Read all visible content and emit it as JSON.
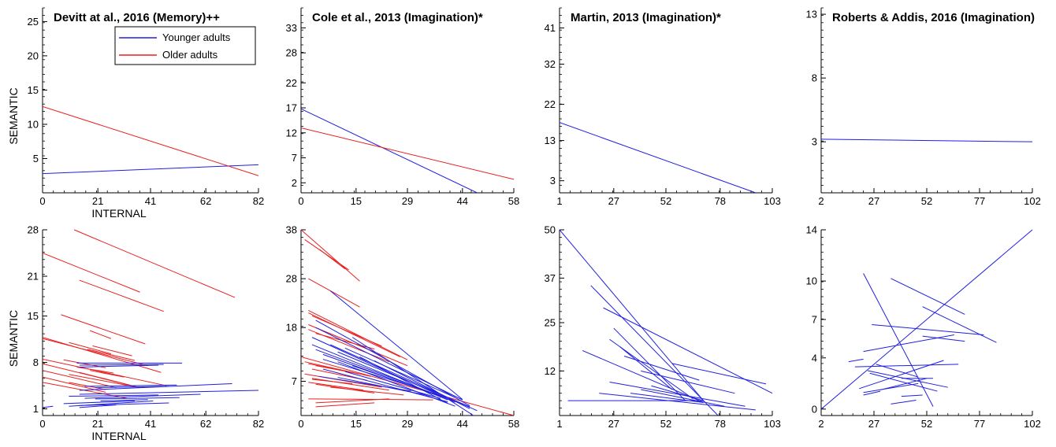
{
  "colors": {
    "younger": "#1f1fe0",
    "older": "#e82020",
    "axis": "#000000"
  },
  "legend": {
    "younger_label": "Younger adults",
    "older_label": "Older adults",
    "placement": "top-left"
  },
  "labels": {
    "xlabel": "INTERNAL",
    "ylabel": "SEMANTIC"
  },
  "chart_data": [
    {
      "type": "line",
      "row": "group",
      "column": 0,
      "title": "Devitt at al., 2016 (Memory)++",
      "xlabel": "INTERNAL",
      "ylabel": "SEMANTIC",
      "xticks": [
        "0",
        "21",
        "41",
        "62",
        "82"
      ],
      "xlim": [
        0,
        82
      ],
      "yticks": [
        "5",
        "10",
        "15",
        "20",
        "25"
      ],
      "ylim": [
        0,
        27
      ],
      "series": [
        {
          "name": "Younger adults",
          "group": "younger",
          "lines": [
            [
              0,
              2.8,
              82,
              4.1
            ]
          ]
        },
        {
          "name": "Older adults",
          "group": "older",
          "lines": [
            [
              0,
              12.6,
              82,
              2.5
            ]
          ]
        }
      ]
    },
    {
      "type": "line",
      "row": "group",
      "column": 1,
      "title": "Cole et al., 2013 (Imagination)*",
      "xlabel": "",
      "ylabel": "",
      "xticks": [
        "0",
        "15",
        "29",
        "44",
        "58"
      ],
      "xlim": [
        0,
        58
      ],
      "yticks": [
        "2",
        "7",
        "12",
        "17",
        "22",
        "28",
        "33"
      ],
      "ylim": [
        0,
        37
      ],
      "series": [
        {
          "group": "younger",
          "lines": [
            [
              0,
              16.8,
              48,
              0
            ]
          ]
        },
        {
          "group": "older",
          "lines": [
            [
              0,
              13,
              58,
              2.7
            ]
          ]
        }
      ]
    },
    {
      "type": "line",
      "row": "group",
      "column": 2,
      "title": "Martin, 2013 (Imagination)*",
      "xlabel": "",
      "ylabel": "",
      "xticks": [
        "1",
        "27",
        "52",
        "78",
        "103"
      ],
      "xlim": [
        1,
        103
      ],
      "yticks": [
        "3",
        "13",
        "22",
        "32",
        "41"
      ],
      "ylim": [
        0,
        46
      ],
      "series": [
        {
          "group": "younger",
          "lines": [
            [
              1,
              17.5,
              95,
              0
            ]
          ]
        }
      ]
    },
    {
      "type": "line",
      "row": "group",
      "column": 3,
      "title": "Roberts & Addis, 2016 (Imagination)",
      "xlabel": "",
      "ylabel": "",
      "xticks": [
        "2",
        "27",
        "52",
        "77",
        "102"
      ],
      "xlim": [
        2,
        102
      ],
      "yticks": [
        "3",
        "8",
        "13"
      ],
      "ylim": [
        -1,
        13.5
      ],
      "series": [
        {
          "group": "younger",
          "lines": [
            [
              2,
              3.2,
              102,
              3.0
            ]
          ]
        }
      ]
    },
    {
      "type": "line",
      "row": "individual",
      "column": 0,
      "title": "",
      "xlabel": "INTERNAL",
      "ylabel": "SEMANTIC",
      "xticks": [
        "0",
        "21",
        "41",
        "62",
        "82"
      ],
      "xlim": [
        0,
        82
      ],
      "yticks": [
        "1",
        "8",
        "15",
        "21",
        "28"
      ],
      "ylim": [
        0,
        28
      ],
      "series": [
        {
          "group": "older",
          "lines": [
            [
              12,
              28,
              73,
              17.8
            ],
            [
              0,
              24.5,
              37,
              18.6
            ],
            [
              14,
              20.4,
              46,
              15.7
            ],
            [
              7,
              15.2,
              39,
              10.8
            ],
            [
              0,
              11.8,
              45,
              6.5
            ],
            [
              0,
              11.6,
              40,
              7.5
            ],
            [
              10,
              11,
              26,
              9.3
            ],
            [
              19,
              10.5,
              34,
              9
            ],
            [
              17,
              10,
              35,
              8.3
            ],
            [
              18,
              12.8,
              26,
              11.6
            ],
            [
              0,
              8.5,
              47,
              4.5
            ],
            [
              0,
              7.8,
              37,
              4.2
            ],
            [
              8,
              8.4,
              24,
              7.2
            ],
            [
              13,
              7.3,
              27,
              6.4
            ],
            [
              0,
              6.8,
              28,
              4.2
            ],
            [
              0,
              5.8,
              24,
              3.5
            ],
            [
              0,
              5,
              32,
              2.6
            ],
            [
              10,
              6.2,
              37,
              4.2
            ],
            [
              10,
              5,
              24,
              3.9
            ],
            [
              14,
              6.5,
              33,
              4.6
            ],
            [
              18,
              6.8,
              31,
              5.8
            ]
          ]
        },
        {
          "group": "younger",
          "lines": [
            [
              13,
              7.9,
              53,
              7.9
            ],
            [
              14,
              7.6,
              46,
              7.7
            ],
            [
              14,
              7.3,
              44,
              7.6
            ],
            [
              16,
              4.4,
              51,
              4.6
            ],
            [
              20,
              4.2,
              48,
              4.4
            ],
            [
              14,
              3.8,
              72,
              4.8
            ],
            [
              14,
              3.2,
              82,
              3.8
            ],
            [
              10,
              2.9,
              44,
              3.1
            ],
            [
              16,
              2.6,
              60,
              3.2
            ],
            [
              20,
              2.5,
              52,
              2.7
            ],
            [
              8,
              1.8,
              35,
              2.2
            ],
            [
              10,
              1.4,
              42,
              2.2
            ],
            [
              14,
              1.5,
              48,
              1.9
            ],
            [
              22,
              2.2,
              40,
              2.4
            ],
            [
              0,
              1.2,
              4,
              1.4
            ],
            [
              14,
              1.2,
              28,
              1.6
            ]
          ]
        }
      ]
    },
    {
      "type": "line",
      "row": "individual",
      "column": 1,
      "title": "",
      "xlabel": "",
      "ylabel": "",
      "xticks": [
        "0",
        "15",
        "29",
        "44",
        "58"
      ],
      "xlim": [
        0,
        58
      ],
      "yticks": [
        "7",
        "18",
        "28",
        "38"
      ],
      "ylim": [
        0,
        38
      ],
      "series": [
        {
          "group": "older",
          "lines": [
            [
              0,
              38,
              16,
              27.5
            ],
            [
              1,
              36,
              13,
              29.8
            ],
            [
              5,
              34,
              12,
              30
            ],
            [
              2,
              28,
              16,
              22.2
            ],
            [
              2,
              21.5,
              29,
              11.4
            ],
            [
              2,
              21,
              27,
              12
            ],
            [
              3,
              20.4,
              22,
              14.2
            ],
            [
              2,
              18.6,
              29,
              10.2
            ],
            [
              2,
              17.6,
              24,
              11
            ],
            [
              4,
              16.8,
              20,
              13.6
            ],
            [
              0,
              12,
              58,
              0
            ],
            [
              1,
              11,
              19,
              8
            ],
            [
              2,
              10.6,
              16,
              8.5
            ],
            [
              4,
              10.2,
              14,
              8.8
            ],
            [
              3,
              9.5,
              18,
              7.2
            ],
            [
              1,
              8.5,
              22,
              5.8
            ],
            [
              3,
              7.6,
              24,
              5.2
            ],
            [
              2,
              6.8,
              17,
              5.2
            ],
            [
              4,
              6.4,
              20,
              4.6
            ],
            [
              2,
              3.4,
              36,
              3.2
            ],
            [
              4,
              2.6,
              24,
              3.4
            ],
            [
              4,
              1.8,
              20,
              2.6
            ],
            [
              8,
              5.8,
              28,
              4.2
            ],
            [
              3,
              7.4,
              14,
              6.5
            ]
          ]
        },
        {
          "group": "younger",
          "lines": [
            [
              8,
              25.5,
              44,
              3.3
            ],
            [
              4,
              19.5,
              46,
              2
            ],
            [
              4,
              18,
              44,
              3.2
            ],
            [
              3,
              16,
              42,
              2.7
            ],
            [
              3,
              14.5,
              40,
              3.2
            ],
            [
              4,
              13.5,
              38,
              4
            ],
            [
              6,
              12.5,
              36,
              4.4
            ],
            [
              6,
              11.5,
              34,
              5.1
            ],
            [
              8,
              14.5,
              48,
              1
            ],
            [
              10,
              13,
              46,
              1.8
            ],
            [
              14,
              16,
              47,
              0
            ],
            [
              10,
              11,
              42,
              1.9
            ],
            [
              14,
              10.2,
              44,
              2.4
            ],
            [
              6,
              9.5,
              40,
              2.8
            ],
            [
              12,
              9,
              38,
              3.5
            ],
            [
              16,
              12,
              40,
              2.5
            ],
            [
              20,
              11.2,
              46,
              1.4
            ],
            [
              5,
              8,
              30,
              5
            ],
            [
              10,
              7.8,
              34,
              4.2
            ],
            [
              12,
              13.8,
              42,
              3.7
            ]
          ]
        }
      ]
    },
    {
      "type": "line",
      "row": "individual",
      "column": 2,
      "title": "",
      "xlabel": "",
      "ylabel": "",
      "xticks": [
        "1",
        "27",
        "52",
        "78",
        "103"
      ],
      "xlim": [
        1,
        103
      ],
      "yticks": [
        "12",
        "25",
        "37",
        "50"
      ],
      "ylim": [
        0,
        50
      ],
      "series": [
        {
          "group": "younger",
          "lines": [
            [
              1,
              50,
              70,
              4
            ],
            [
              16,
              35,
              77,
              0
            ],
            [
              22,
              29,
              103,
              6
            ],
            [
              27,
              23.5,
              61,
              4.2
            ],
            [
              25,
              20.5,
              65,
              4.5
            ],
            [
              30,
              18.5,
              55,
              7
            ],
            [
              12,
              17.5,
              68,
              4
            ],
            [
              32,
              16,
              68,
              9.5
            ],
            [
              55,
              14,
              100,
              8.5
            ],
            [
              40,
              12,
              85,
              6
            ],
            [
              25,
              9,
              90,
              2.5
            ],
            [
              35,
              6,
              70,
              3.5
            ],
            [
              5,
              4,
              70,
              4
            ],
            [
              45,
              8,
              70,
              4
            ],
            [
              20,
              6,
              95,
              1.5
            ],
            [
              40,
              7,
              80,
              2.5
            ]
          ]
        }
      ]
    },
    {
      "type": "line",
      "row": "individual",
      "column": 3,
      "title": "",
      "xlabel": "",
      "ylabel": "",
      "xticks": [
        "2",
        "27",
        "52",
        "77",
        "102"
      ],
      "xlim": [
        2,
        102
      ],
      "yticks": [
        "0",
        "4",
        "7",
        "10",
        "14"
      ],
      "ylim": [
        -0.5,
        14
      ],
      "series": [
        {
          "group": "younger",
          "lines": [
            [
              2,
              0,
              102,
              14
            ],
            [
              22,
              10.6,
              55,
              0.2
            ],
            [
              35,
              10.2,
              70,
              7.4
            ],
            [
              50,
              8,
              85,
              5.2
            ],
            [
              26,
              6.6,
              79,
              5.8
            ],
            [
              22,
              4.5,
              65,
              5.8
            ],
            [
              50,
              5.7,
              70,
              5.3
            ],
            [
              15,
              3.7,
              22,
              3.9
            ],
            [
              18,
              3.3,
              67,
              3.5
            ],
            [
              24,
              3,
              62,
              1.7
            ],
            [
              20,
              1.6,
              60,
              3.8
            ],
            [
              28,
              3.5,
              48,
              2.5
            ],
            [
              25,
              2.8,
              57,
              1.4
            ],
            [
              30,
              1.5,
              52,
              2.4
            ],
            [
              40,
              2.4,
              55,
              2.4
            ],
            [
              22,
              1.3,
              48,
              2
            ],
            [
              22,
              1.1,
              30,
              1.4
            ],
            [
              40,
              1,
              50,
              1.1
            ],
            [
              35,
              0.4,
              47,
              0.7
            ]
          ]
        }
      ]
    }
  ]
}
